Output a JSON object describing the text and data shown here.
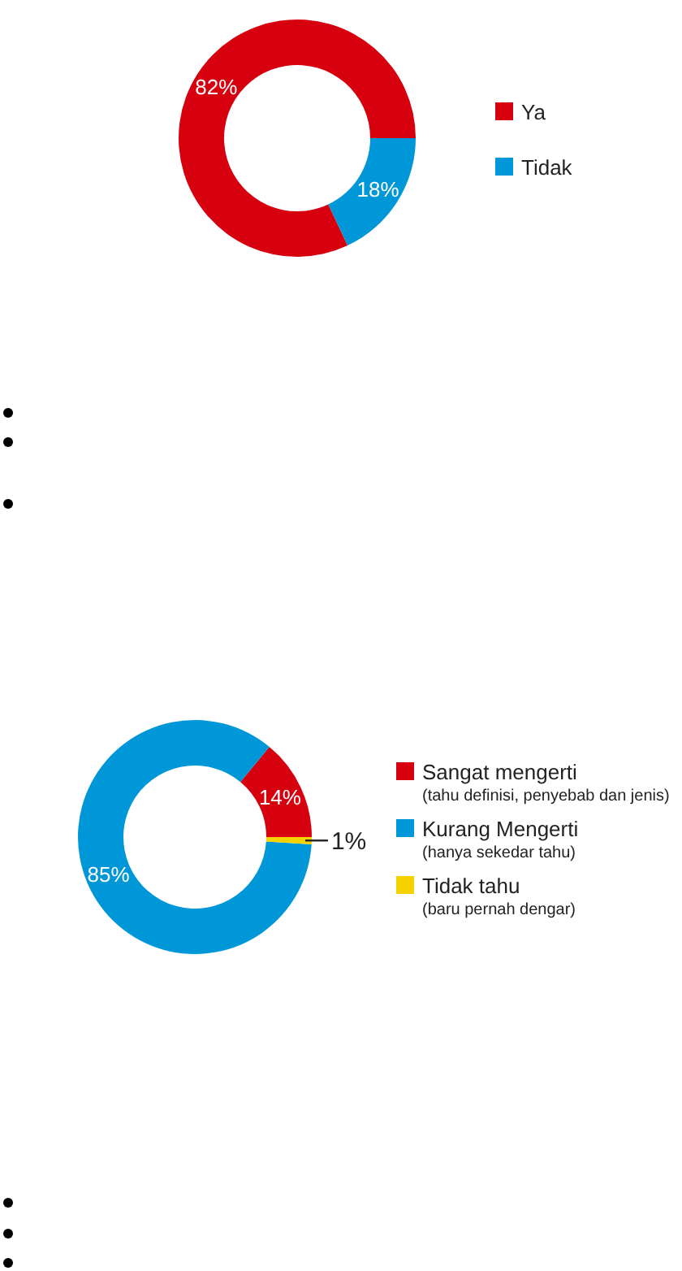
{
  "chart_data": [
    {
      "type": "donut",
      "categories": [
        "Ya",
        "Tidak"
      ],
      "values": [
        82,
        18
      ],
      "colors": [
        "#d7000f",
        "#0097d8"
      ],
      "value_labels": [
        "82%",
        "18%"
      ],
      "legend": "right"
    },
    {
      "type": "donut",
      "categories": [
        "Sangat mengerti\n(tahu definisi, penyebab dan jenis)",
        "Kurang Mengerti\n(hanya sekedar tahu)",
        "Tidak tahu\n(baru pernah dengar)"
      ],
      "values": [
        14,
        85,
        1
      ],
      "colors": [
        "#d7000f",
        "#0097d8",
        "#f5d200"
      ],
      "value_labels": [
        "14%",
        "85%",
        "1%"
      ],
      "legend": "right"
    }
  ]
}
